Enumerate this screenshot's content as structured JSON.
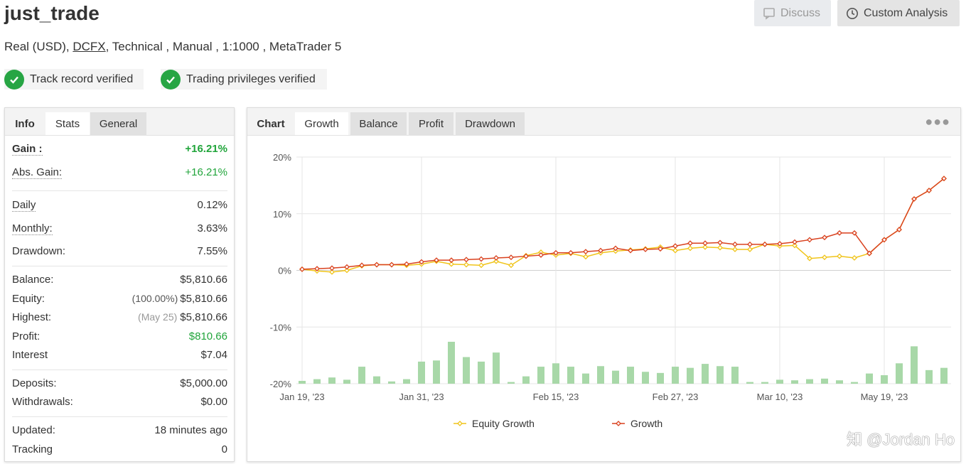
{
  "header": {
    "title": "just_trade",
    "discuss_label": "Discuss",
    "custom_analysis_label": "Custom Analysis",
    "account_type": "Real (USD),",
    "broker": "DCFX",
    "details": ", Technical , Manual , 1:1000 , MetaTrader 5",
    "badges": [
      "Track record verified",
      "Trading privileges verified"
    ]
  },
  "info_panel": {
    "tabs": [
      "Info",
      "Stats",
      "General"
    ],
    "active_tab": "Stats",
    "rows": {
      "gain": {
        "label": "Gain :",
        "value": "+16.21%"
      },
      "abs_gain": {
        "label": "Abs. Gain:",
        "value": "+16.21%"
      },
      "daily": {
        "label": "Daily",
        "value": "0.12%"
      },
      "monthly": {
        "label": "Monthly:",
        "value": "3.63%"
      },
      "drawdown": {
        "label": "Drawdown:",
        "value": "7.55%"
      },
      "balance": {
        "label": "Balance:",
        "value": "$5,810.66"
      },
      "equity": {
        "label": "Equity:",
        "note": "(100.00%)",
        "value": "$5,810.66"
      },
      "highest": {
        "label": "Highest:",
        "note": "(May 25)",
        "value": "$5,810.66"
      },
      "profit": {
        "label": "Profit:",
        "value": "$810.66"
      },
      "interest": {
        "label": "Interest",
        "value": "$7.04"
      },
      "deposits": {
        "label": "Deposits:",
        "value": "$5,000.00"
      },
      "withdrawals": {
        "label": "Withdrawals:",
        "value": "$0.00"
      },
      "updated": {
        "label": "Updated:",
        "value": "18 minutes ago"
      },
      "tracking": {
        "label": "Tracking",
        "value": "0"
      }
    }
  },
  "chart_panel": {
    "tabs": [
      "Chart",
      "Growth",
      "Balance",
      "Profit",
      "Drawdown"
    ],
    "active_tab": "Growth",
    "more_icon": "ellipsis-icon"
  },
  "chart_data": {
    "type": "line",
    "y_ticks": [
      "20%",
      "10%",
      "0%",
      "-10%",
      "-20%"
    ],
    "ylim": [
      -20,
      20
    ],
    "x_ticks": [
      "Jan 19, '23",
      "Jan 31, '23",
      "Feb 15, '23",
      "Feb 27, '23",
      "Mar 10, '23",
      "May 19, '23"
    ],
    "legend_position": "bottom",
    "series": [
      {
        "name": "Equity Growth",
        "color": "#f0c419",
        "values": [
          0.2,
          -0.1,
          -0.3,
          0.0,
          0.8,
          1.0,
          1.0,
          0.9,
          1.1,
          1.6,
          1.1,
          1.0,
          0.9,
          1.6,
          0.9,
          2.6,
          3.2,
          2.7,
          3.0,
          2.4,
          3.1,
          3.4,
          3.6,
          3.8,
          4.1,
          3.5,
          3.9,
          4.1,
          4.0,
          3.7,
          3.7,
          4.6,
          4.3,
          4.4,
          2.1,
          2.3,
          2.5,
          2.2,
          3.0,
          5.4,
          7.2,
          12.6,
          14.1,
          16.21
        ]
      },
      {
        "name": "Growth",
        "color": "#d9411e",
        "values": [
          0.2,
          0.3,
          0.4,
          0.6,
          0.9,
          1.0,
          1.0,
          1.1,
          1.5,
          1.8,
          1.8,
          1.9,
          2.0,
          2.2,
          2.3,
          2.5,
          2.7,
          3.1,
          3.1,
          3.3,
          3.5,
          3.9,
          3.5,
          3.7,
          3.8,
          4.3,
          4.8,
          4.8,
          4.9,
          4.6,
          4.6,
          4.6,
          4.7,
          5.0,
          5.4,
          5.8,
          6.6,
          6.6,
          3.0,
          5.4,
          7.2,
          12.6,
          14.1,
          16.21
        ]
      }
    ],
    "bars": {
      "color": "#a8d8a8",
      "values": [
        0.5,
        0.8,
        1.1,
        0.7,
        3.0,
        1.3,
        0.4,
        0.8,
        3.9,
        4.1,
        7.4,
        4.7,
        3.9,
        5.5,
        0.3,
        1.3,
        3.0,
        3.6,
        3.0,
        1.8,
        3.1,
        2.3,
        3.0,
        2.1,
        1.9,
        3.0,
        2.8,
        3.5,
        3.1,
        3.0,
        0.3,
        0.3,
        0.7,
        0.6,
        0.8,
        0.9,
        0.6,
        0.3,
        1.8,
        1.5,
        3.6,
        6.6,
        2.4,
        2.8
      ]
    }
  }
}
